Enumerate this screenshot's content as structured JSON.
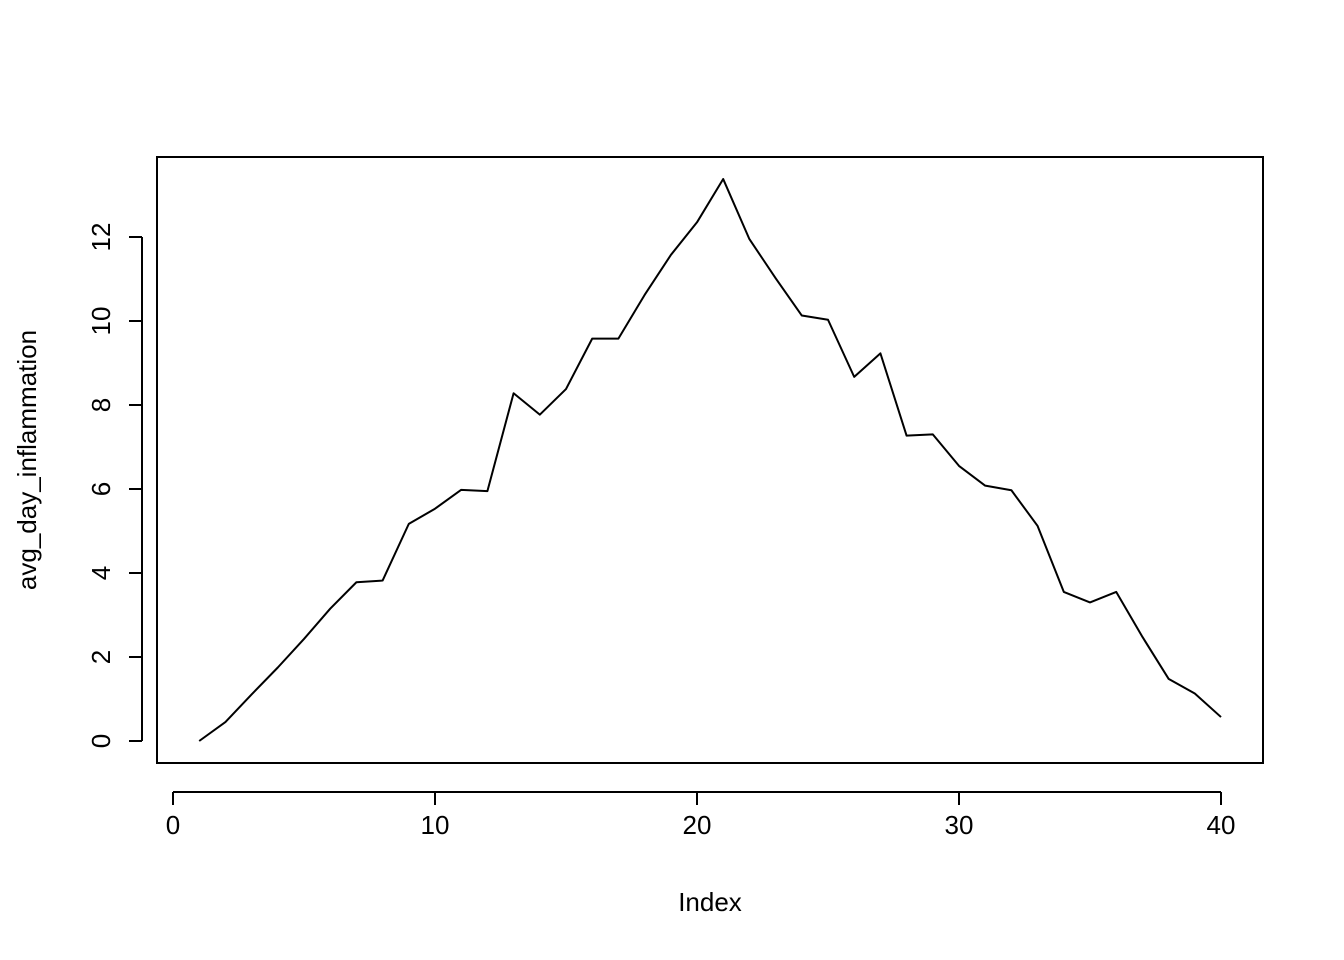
{
  "chart_data": {
    "type": "line",
    "title": "",
    "xlabel": "Index",
    "ylabel": "avg_day_inflammation",
    "xlim": [
      0,
      41
    ],
    "ylim": [
      0,
      13.4
    ],
    "x_ticks": [
      0,
      10,
      20,
      30,
      40
    ],
    "x_tick_labels": [
      "0",
      "10",
      "20",
      "30",
      "40"
    ],
    "y_ticks": [
      0,
      2,
      4,
      6,
      8,
      10,
      12
    ],
    "y_tick_labels": [
      "0",
      "2",
      "4",
      "6",
      "8",
      "10",
      "12"
    ],
    "grid": false,
    "legend": "none",
    "line_color": "#000000",
    "x": [
      1,
      2,
      3,
      4,
      5,
      6,
      7,
      8,
      9,
      10,
      11,
      12,
      13,
      14,
      15,
      16,
      17,
      18,
      19,
      20,
      21,
      22,
      23,
      24,
      25,
      26,
      27,
      28,
      29,
      30,
      31,
      32,
      33,
      34,
      35,
      36,
      37,
      38,
      39,
      40
    ],
    "values": [
      0.0,
      0.45,
      1.11,
      1.75,
      2.43,
      3.15,
      3.78,
      3.82,
      5.17,
      5.53,
      5.98,
      5.95,
      8.28,
      7.77,
      8.38,
      9.58,
      9.58,
      10.62,
      11.57,
      12.35,
      13.38,
      11.95,
      11.02,
      10.13,
      10.03,
      8.67,
      9.23,
      7.27,
      7.3,
      6.55,
      6.08,
      5.97,
      5.12,
      3.55,
      3.3,
      3.55,
      2.48,
      1.48,
      1.13,
      0.57
    ]
  }
}
